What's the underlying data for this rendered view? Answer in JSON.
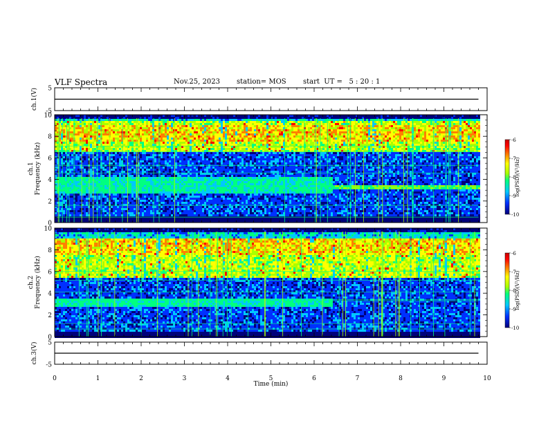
{
  "header": {
    "title": "VLF Spectra",
    "date": "Nov.25, 2023",
    "station": "station= MOS",
    "start_ut": "start  UT =   5 : 20 : 1"
  },
  "colors": {
    "background": "#000060",
    "colormap": [
      "#00007a",
      "#0030ff",
      "#00c8ff",
      "#00ff80",
      "#aaff00",
      "#ffff00",
      "#ff8000",
      "#ff0000",
      "#c80000"
    ]
  },
  "chart_data": [
    {
      "type": "line",
      "id": "ch1-voltage",
      "ylabel": "ch.1(V)",
      "ylim": [
        -5,
        5
      ],
      "yticks": [
        "5",
        "-5"
      ],
      "series": [
        {
          "x": [
            0,
            9.8
          ],
          "y": [
            0,
            0
          ]
        }
      ],
      "xlim": [
        0,
        10
      ]
    },
    {
      "type": "heatmap",
      "id": "ch1-spectrogram",
      "ylabel": "ch.1\nFrequency (kHz)",
      "ylabel_lines": [
        "ch.1",
        "Frequency (kHz)"
      ],
      "ylim": [
        0,
        10
      ],
      "yticks": [
        "0",
        "2",
        "4",
        "6",
        "8",
        "10"
      ],
      "xlim": [
        0,
        10
      ],
      "data_end_min": 9.8,
      "emission_band_khz": [
        6.5,
        9.5
      ],
      "colorbar": {
        "label": "log(PSD)(V²/Hz)",
        "ticks": [
          "-6",
          "-7",
          "-8",
          "-9",
          "-10"
        ],
        "range": [
          -10,
          -6
        ]
      }
    },
    {
      "type": "heatmap",
      "id": "ch2-spectrogram",
      "ylabel": "ch.2\nFrequency (kHz)",
      "ylabel_lines": [
        "ch.2",
        "Frequency (kHz)"
      ],
      "ylim": [
        0,
        10
      ],
      "yticks": [
        "0",
        "2",
        "4",
        "6",
        "8",
        "10"
      ],
      "xlim": [
        0,
        10
      ],
      "data_end_min": 9.8,
      "emission_band_khz": [
        5.5,
        9.0
      ],
      "colorbar": {
        "label": "log(PSD)(V²/Hz)",
        "ticks": [
          "-6",
          "-7",
          "-8",
          "-9",
          "-10"
        ],
        "range": [
          -10,
          -6
        ]
      }
    },
    {
      "type": "line",
      "id": "ch3-voltage",
      "ylabel": "ch.3(V)",
      "ylim": [
        -5,
        5
      ],
      "yticks": [
        "5",
        "-5"
      ],
      "series": [
        {
          "x": [
            0,
            9.8
          ],
          "y": [
            0,
            0
          ]
        }
      ],
      "xlim": [
        0,
        10
      ],
      "xlabel": "Time (min)",
      "xticks": [
        "0",
        "1",
        "2",
        "3",
        "4",
        "5",
        "6",
        "7",
        "8",
        "9",
        "10"
      ]
    }
  ]
}
